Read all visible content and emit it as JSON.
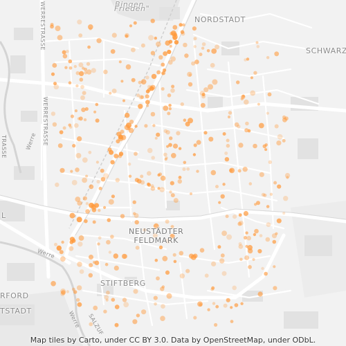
{
  "map": {
    "labels": {
      "nordstadt": "NORDSTADT",
      "schwarz": "SCHWARZ",
      "frieden": "Frieden\"",
      "bingen": "Bingen",
      "neustaedter_feldmark_line1": "NEUSTÄDTER",
      "neustaedter_feldmark_line2": "FELDMARK",
      "stiftberg": "STIFTBERG",
      "rford": "RFORD",
      "tstadt": "TSTADT",
      "l": "L"
    },
    "road_labels": {
      "werrestrasse_left": "WERRESTRASSE",
      "werrestrasse_top": "WERRESTRASSE",
      "trasse_left": "TRASSE",
      "werre_river_1": "Werre",
      "werre_river_2": "Werre",
      "werre_river_3": "Werre",
      "salzuf": "SALZUF"
    },
    "attribution": "Map tiles by Carto, under CC BY 3.0. Data by OpenStreetMap, under ODbL.",
    "colors": {
      "land": "#f2f2f2",
      "road": "#ffffff",
      "major_road": "#ffffff",
      "building": "#e0e0e0",
      "dot": "#ff9a3c"
    }
  }
}
